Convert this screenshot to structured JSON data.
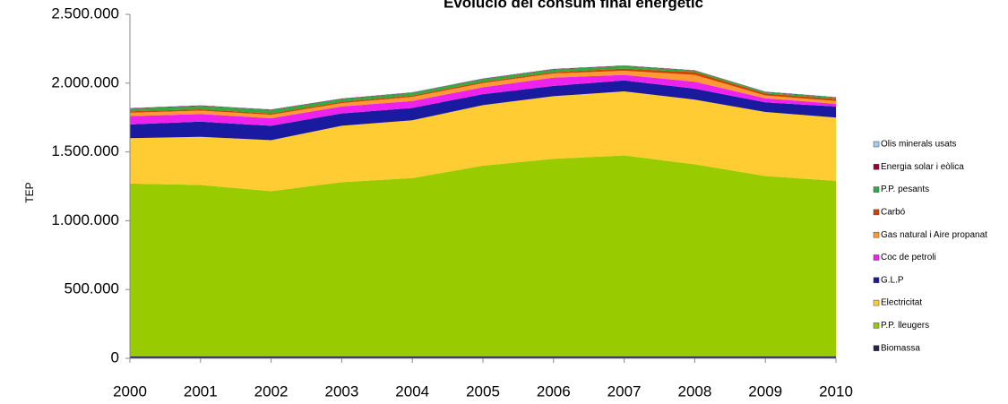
{
  "chart_data": {
    "type": "stacked_area",
    "title": "Evolució del consum final energètic",
    "y_label": "TEP",
    "x": [
      2000,
      2001,
      2002,
      2003,
      2004,
      2005,
      2006,
      2007,
      2008,
      2009,
      2010
    ],
    "xlim": [
      2000,
      2010
    ],
    "xticks": [
      2000,
      2001,
      2002,
      2003,
      2004,
      2005,
      2006,
      2007,
      2008,
      2009,
      2010
    ],
    "ylim": [
      0,
      2500000
    ],
    "yticks": [
      0,
      {
        "value": 500000,
        "label": "500.000"
      },
      {
        "value": 1000000,
        "label": "1.000.000"
      },
      {
        "value": 1500000,
        "label": "1.500.000"
      },
      {
        "value": 2000000,
        "label": "2.000.000"
      },
      {
        "value": 2500000,
        "label": "2.500.000"
      }
    ],
    "series": [
      {
        "name": "Biomassa",
        "color": "#22224a",
        "values": [
          15000,
          15000,
          15000,
          15000,
          15000,
          15000,
          15000,
          15000,
          15000,
          15000,
          15000
        ]
      },
      {
        "name": "P.P. lleugers",
        "color": "#99cc00",
        "values": [
          1255000,
          1245000,
          1200000,
          1265000,
          1295000,
          1385000,
          1435000,
          1460000,
          1395000,
          1310000,
          1275000
        ]
      },
      {
        "name": "Electricitat",
        "color": "#ffcc33",
        "values": [
          330000,
          350000,
          370000,
          410000,
          420000,
          440000,
          455000,
          465000,
          470000,
          465000,
          460000
        ]
      },
      {
        "name": "G.L.P",
        "color": "#1a1aa0",
        "values": [
          100000,
          110000,
          105000,
          90000,
          90000,
          80000,
          75000,
          80000,
          80000,
          70000,
          80000
        ]
      },
      {
        "name": "Coc de petroli",
        "color": "#ee22ee",
        "values": [
          60000,
          55000,
          55000,
          50000,
          50000,
          50000,
          60000,
          40000,
          50000,
          30000,
          20000
        ]
      },
      {
        "name": "Gas natural i Aire propanat",
        "color": "#ff9933",
        "values": [
          25000,
          25000,
          25000,
          25000,
          30000,
          30000,
          30000,
          30000,
          50000,
          20000,
          20000
        ]
      },
      {
        "name": "Carbó",
        "color": "#cc4400",
        "values": [
          10000,
          10000,
          10000,
          10000,
          10000,
          10000,
          10000,
          15000,
          20000,
          15000,
          15000
        ]
      },
      {
        "name": "P.P. pesants",
        "color": "#33aa44",
        "values": [
          20000,
          25000,
          25000,
          20000,
          20000,
          20000,
          20000,
          20000,
          10000,
          10000,
          10000
        ]
      },
      {
        "name": "Energia solar i eòlica",
        "color": "#990033",
        "values": [
          3000,
          3000,
          3000,
          3000,
          3000,
          3000,
          3000,
          3000,
          3000,
          3000,
          3000
        ]
      },
      {
        "name": "Olis minerals usats",
        "color": "#99ccff",
        "values": [
          2000,
          2000,
          2000,
          2000,
          2000,
          2000,
          2000,
          2000,
          2000,
          2000,
          2000
        ]
      }
    ]
  }
}
